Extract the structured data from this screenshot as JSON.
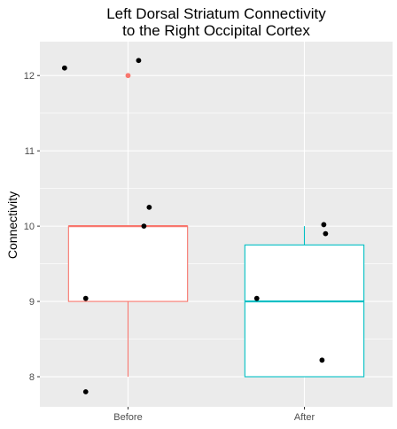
{
  "chart_data": {
    "type": "boxplot",
    "title": "Left Dorsal Striatum Connectivity\nto the Right Occipital Cortex",
    "xlabel": "",
    "ylabel": "Connectivity",
    "ylim": [
      7.6,
      12.45
    ],
    "yticks": [
      "8",
      "9",
      "10",
      "11",
      "12"
    ],
    "categories": [
      "Before",
      "After"
    ],
    "grid": true,
    "legend": "none",
    "background": "#EBEBEB",
    "gridline_color": "#FFFFFF",
    "boxes": [
      {
        "category": "Before",
        "color": "#F8766D",
        "q1": 9.0,
        "median": 10.0,
        "q3": 10.0,
        "whisker_low": 8.0,
        "whisker_high": 10.0,
        "outliers": [
          12.0
        ]
      },
      {
        "category": "After",
        "color": "#00BFC4",
        "q1": 8.0,
        "median": 9.0,
        "q3": 9.75,
        "whisker_low": 8.0,
        "whisker_high": 10.0,
        "outliers": []
      }
    ],
    "points": [
      {
        "category": "Before",
        "jitter": -0.36,
        "y": 12.1
      },
      {
        "category": "Before",
        "jitter": 0.06,
        "y": 12.2
      },
      {
        "category": "Before",
        "jitter": 0.12,
        "y": 10.25
      },
      {
        "category": "Before",
        "jitter": 0.09,
        "y": 10.0
      },
      {
        "category": "Before",
        "jitter": -0.24,
        "y": 9.04
      },
      {
        "category": "Before",
        "jitter": -0.24,
        "y": 7.8
      },
      {
        "category": "After",
        "jitter": 0.11,
        "y": 10.02
      },
      {
        "category": "After",
        "jitter": 0.12,
        "y": 9.9
      },
      {
        "category": "After",
        "jitter": -0.27,
        "y": 9.04
      },
      {
        "category": "After",
        "jitter": 0.1,
        "y": 8.22
      }
    ],
    "point_color": "#000000"
  }
}
